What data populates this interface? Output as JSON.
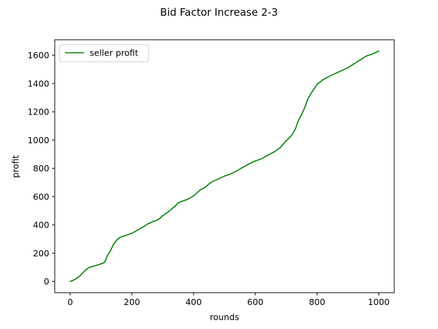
{
  "chart_data": {
    "type": "line",
    "title": "Bid Factor Increase 2-3",
    "xlabel": "rounds",
    "ylabel": "profit",
    "xlim": [
      -50,
      1050
    ],
    "ylim": [
      -80,
      1710
    ],
    "xticks": [
      0,
      200,
      400,
      600,
      800,
      1000
    ],
    "yticks": [
      0,
      200,
      400,
      600,
      800,
      1000,
      1200,
      1400,
      1600
    ],
    "grid": false,
    "legend": {
      "position": "top-left"
    },
    "series": [
      {
        "name": "seller profit",
        "color": "#008000",
        "x": [
          0,
          10,
          20,
          30,
          40,
          50,
          60,
          70,
          80,
          90,
          100,
          110,
          115,
          120,
          130,
          140,
          150,
          160,
          170,
          180,
          200,
          220,
          240,
          250,
          260,
          270,
          280,
          290,
          300,
          310,
          320,
          330,
          340,
          350,
          360,
          380,
          400,
          420,
          440,
          450,
          460,
          480,
          500,
          520,
          540,
          560,
          580,
          600,
          620,
          640,
          660,
          680,
          700,
          710,
          720,
          730,
          740,
          745,
          750,
          760,
          770,
          780,
          790,
          800,
          820,
          840,
          860,
          880,
          900,
          920,
          940,
          960,
          980,
          1000
        ],
        "y": [
          0,
          8,
          20,
          35,
          58,
          80,
          97,
          104,
          110,
          117,
          124,
          133,
          150,
          180,
          215,
          260,
          290,
          310,
          318,
          325,
          340,
          365,
          390,
          405,
          415,
          425,
          432,
          445,
          465,
          480,
          495,
          515,
          532,
          555,
          565,
          580,
          605,
          645,
          670,
          690,
          705,
          725,
          745,
          760,
          782,
          808,
          832,
          852,
          868,
          893,
          915,
          945,
          995,
          1015,
          1040,
          1080,
          1140,
          1160,
          1180,
          1230,
          1290,
          1330,
          1360,
          1395,
          1428,
          1452,
          1472,
          1492,
          1512,
          1540,
          1568,
          1595,
          1610,
          1630
        ]
      }
    ]
  }
}
